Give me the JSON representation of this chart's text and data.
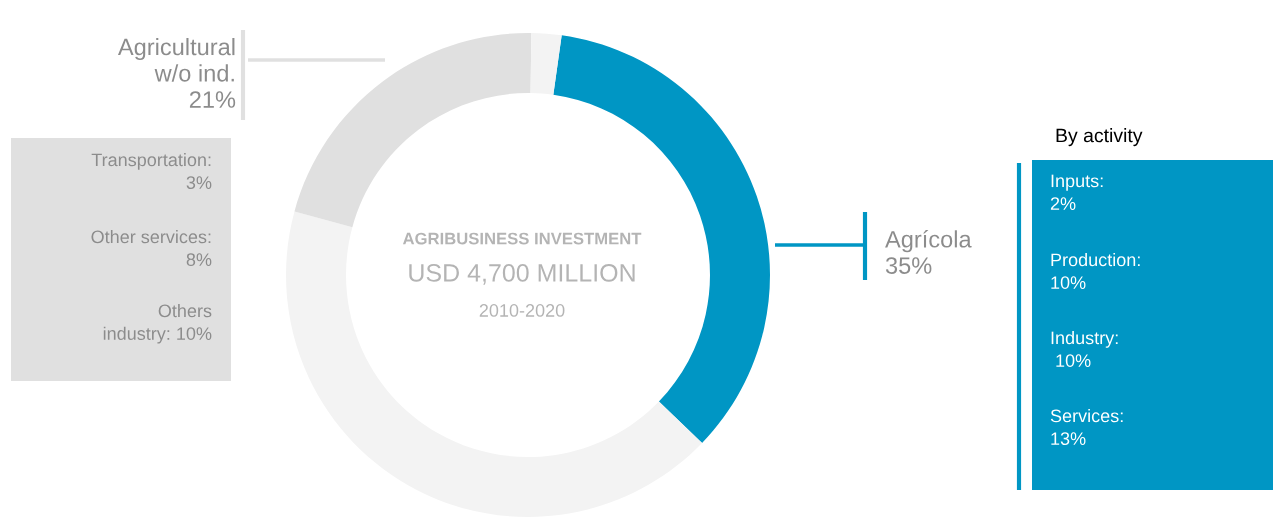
{
  "chart_data": {
    "type": "donut",
    "title": "AGRIBUSINESS INVESTMENT",
    "subtitle": "USD 4,700 MILLION",
    "categories": [
      "Agrícola",
      null,
      "Agricultural w/o ind.",
      null
    ],
    "values": [
      35,
      42,
      21,
      2
    ],
    "value_labels": [
      "35%",
      null,
      "21%",
      null
    ],
    "colors": [
      "#0096c4",
      "#f3f3f3",
      "#e0e0e0",
      "#f3f3f3"
    ],
    "annotations": [
      "2010-2020",
      "Transportation:\n3%",
      "Other services:\n8%",
      "Others\nindustry: 10%",
      "By activity",
      "Inputs:\n2%",
      "Production:\n10%",
      "Industry:\n 10%",
      "Services:\n13%"
    ],
    "legend": false
  }
}
